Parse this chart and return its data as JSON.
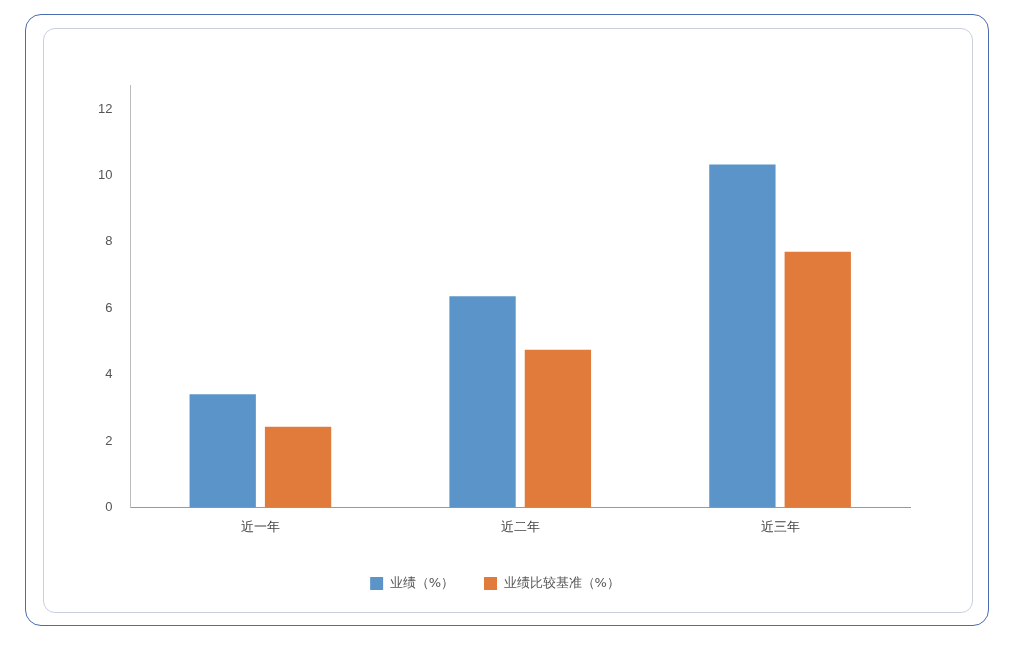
{
  "chart_data": {
    "type": "bar",
    "categories": [
      "近一年",
      "近二年",
      "近三年"
    ],
    "series": [
      {
        "name": "业绩（%）",
        "color": "#5b94c8",
        "values": [
          3.41,
          6.36,
          10.33
        ]
      },
      {
        "name": "业绩比较基准（%）",
        "color": "#e07b3c",
        "values": [
          2.43,
          4.75,
          7.7
        ]
      }
    ],
    "ylim": [
      0,
      12.7
    ],
    "yticks": [
      0,
      2,
      4,
      6,
      8,
      10,
      12
    ],
    "grid": false,
    "legend": "bottom"
  }
}
